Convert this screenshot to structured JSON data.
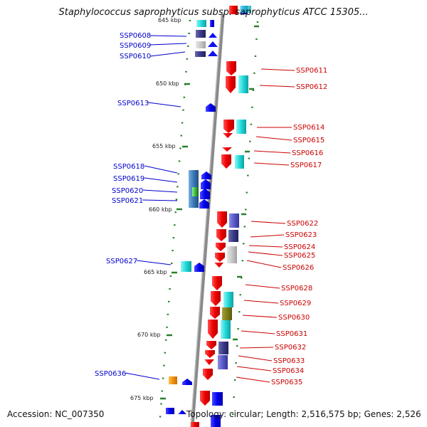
{
  "title": "Staphylococcus saprophyticus subsp. saprophyticus ATCC 15305...",
  "footer": {
    "accession": "Accession: NC_007350",
    "info": "Topology: circular; Length: 2,516,575 bp; Genes: 2,526"
  },
  "colors": {
    "forward_label": "#0000cc",
    "reverse_label": "#cc0000",
    "backbone": "#888888",
    "tick": "#2a7f2a"
  },
  "scale_marks": [
    "645 kbp",
    "650 kbp",
    "655 kbp",
    "660 kbp",
    "665 kbp",
    "670 kbp",
    "675 kbp"
  ],
  "left_genes": [
    "SSP0608",
    "SSP0609",
    "SSP0610",
    "SSP0613",
    "SSP0618",
    "SSP0619",
    "SSP0620",
    "SSP0621",
    "SSP0627",
    "SSP0636"
  ],
  "right_genes": [
    "SSP0611",
    "SSP0612",
    "SSP0614",
    "SSP0615",
    "SSP0616",
    "SSP0617",
    "SSP0622",
    "SSP0623",
    "SSP0624",
    "SSP0625",
    "SSP0626",
    "SSP0628",
    "SSP0629",
    "SSP0630",
    "SSP0631",
    "SSP0632",
    "SSP0633",
    "SSP0634",
    "SSP0635"
  ]
}
